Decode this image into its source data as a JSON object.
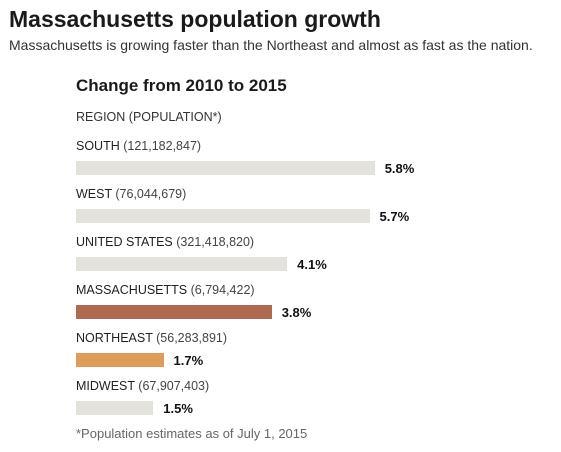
{
  "header": {
    "title": "Massachusetts population growth",
    "subtitle": "Massachusetts is growing faster than the Northeast and almost as fast as the nation."
  },
  "chart_data": {
    "type": "bar",
    "orientation": "horizontal",
    "title": "Change from 2010 to 2015",
    "category_header": "REGION (POPULATION*)",
    "footnote": "*Population estimates as of July 1, 2015",
    "unit": "%",
    "categories": [
      "SOUTH",
      "WEST",
      "UNITED STATES",
      "MASSACHUSETTS",
      "NORTHEAST",
      "MIDWEST"
    ],
    "populations": [
      "(121,182,847)",
      "(76,044,679)",
      "(321,418,820)",
      "(6,794,422)",
      "(56,283,891)",
      "(67,907,403)"
    ],
    "values": [
      5.8,
      5.7,
      4.1,
      3.8,
      1.7,
      1.5
    ],
    "value_labels": [
      "5.8%",
      "5.7%",
      "4.1%",
      "3.8%",
      "1.7%",
      "1.5%"
    ],
    "colors": [
      "#e3e3dc",
      "#e3e3dc",
      "#e3e3dc",
      "#b06a50",
      "#e09b58",
      "#e3e3dc"
    ],
    "xlim": [
      0,
      6
    ],
    "grid": false,
    "legend": "none"
  }
}
